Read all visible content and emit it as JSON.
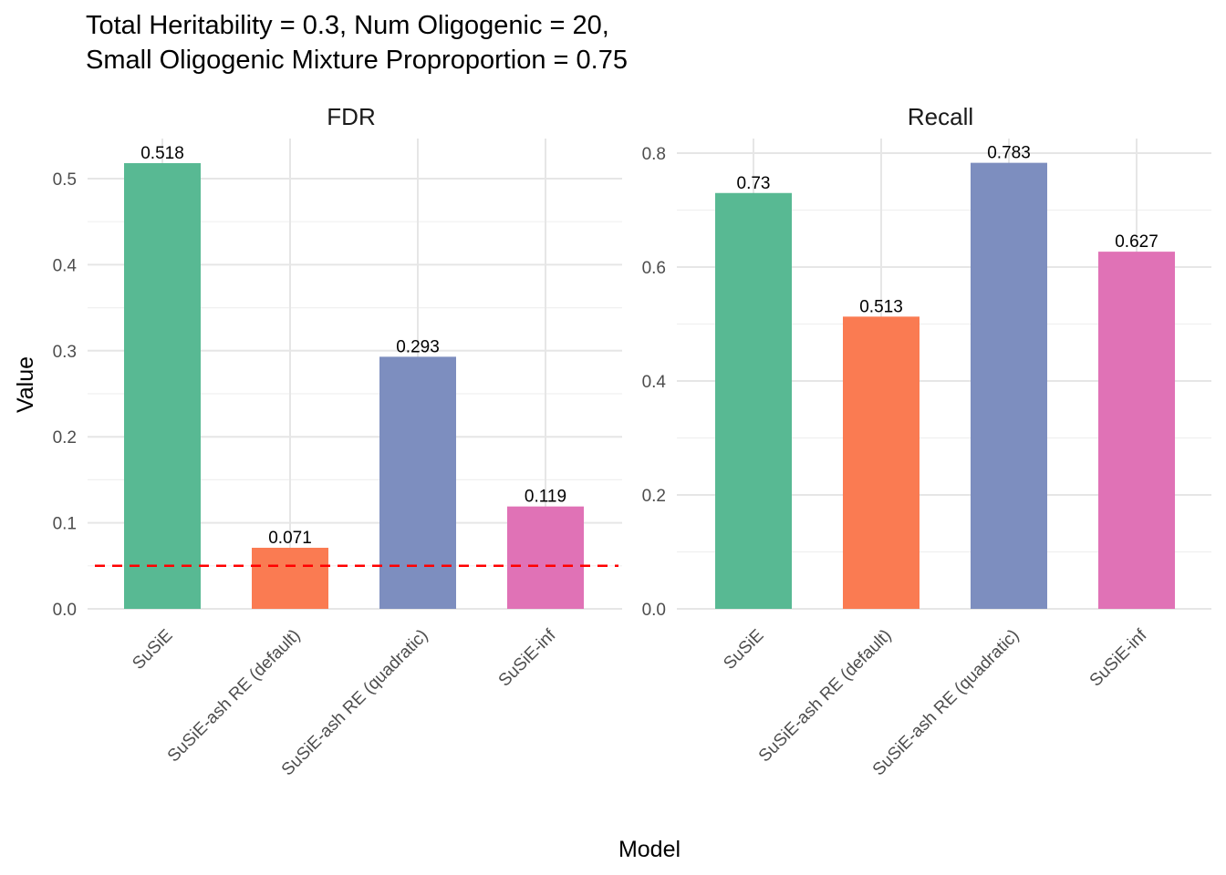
{
  "chart_data": {
    "type": "bar",
    "title_lines": [
      "Total Heritability = 0.3, Num Oligogenic = 20,",
      "Small Oligogenic Mixture Proproportion = 0.75"
    ],
    "xlabel": "Model",
    "ylabel": "Value",
    "categories": [
      "SuSiE",
      "SuSiE-ash RE (default)",
      "SuSiE-ash RE (quadratic)",
      "SuSiE-inf"
    ],
    "colors": [
      "#58b993",
      "#fa7b52",
      "#7d8ebf",
      "#e072b6"
    ],
    "grid": true,
    "panels": [
      {
        "name": "FDR",
        "values": [
          0.518,
          0.071,
          0.293,
          0.119
        ],
        "value_labels": [
          "0.518",
          "0.071",
          "0.293",
          "0.119"
        ],
        "ylim": [
          0,
          0.5
        ],
        "yticks": [
          0.0,
          0.1,
          0.2,
          0.3,
          0.4,
          0.5
        ],
        "ytick_labels": [
          "0.0",
          "0.1",
          "0.2",
          "0.3",
          "0.4",
          "0.5"
        ],
        "reference_line": {
          "y": 0.05,
          "color": "#ff0000",
          "style": "dashed"
        }
      },
      {
        "name": "Recall",
        "values": [
          0.73,
          0.513,
          0.783,
          0.627
        ],
        "value_labels": [
          "0.73",
          "0.513",
          "0.783",
          "0.627"
        ],
        "ylim": [
          0,
          0.8
        ],
        "yticks": [
          0.0,
          0.2,
          0.4,
          0.6,
          0.8
        ],
        "ytick_labels": [
          "0.0",
          "0.2",
          "0.4",
          "0.6",
          "0.8"
        ]
      }
    ]
  }
}
